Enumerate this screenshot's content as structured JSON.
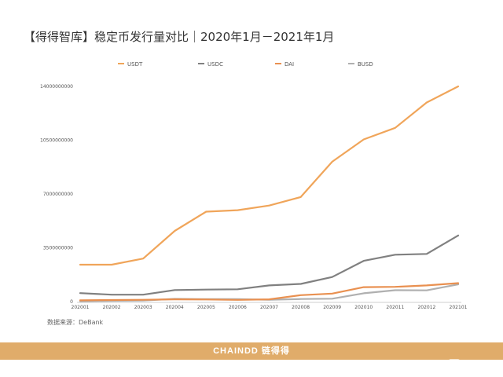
{
  "title": "【得得智库】稳定币发行量对比｜2020年1月－2021年1月",
  "source": "数据来源：DeBank",
  "footer": {
    "brand": "CHAINDD 链得得"
  },
  "watermark": {
    "text": "链得得",
    "subtext": "CHAINDD"
  },
  "chart_data": {
    "type": "line",
    "categories": [
      "202001",
      "202002",
      "202003",
      "202004",
      "202005",
      "202006",
      "202007",
      "202008",
      "202009",
      "202010",
      "202011",
      "202012",
      "202101"
    ],
    "yticks": [
      "0",
      "3500000000",
      "7000000000",
      "10500000000",
      "14000000000"
    ],
    "ylim": [
      0,
      14000000000
    ],
    "legend_position": "top",
    "grid": false,
    "series": [
      {
        "name": "USDT",
        "color": "#f0a55a",
        "values": [
          2400000000,
          2400000000,
          2800000000,
          4600000000,
          5850000000,
          5950000000,
          6250000000,
          6800000000,
          9100000000,
          10550000000,
          11300000000,
          12950000000,
          14000000000
        ]
      },
      {
        "name": "USDC",
        "color": "#808080",
        "values": [
          550000000,
          450000000,
          450000000,
          750000000,
          780000000,
          800000000,
          1050000000,
          1150000000,
          1600000000,
          2650000000,
          3050000000,
          3100000000,
          4300000000
        ]
      },
      {
        "name": "DAI",
        "color": "#e99050",
        "values": [
          80000000,
          100000000,
          120000000,
          150000000,
          140000000,
          110000000,
          150000000,
          420000000,
          520000000,
          940000000,
          960000000,
          1050000000,
          1200000000
        ]
      },
      {
        "name": "BUSD",
        "color": "#b0b0b0",
        "values": [
          20000000,
          50000000,
          70000000,
          180000000,
          160000000,
          160000000,
          120000000,
          170000000,
          190000000,
          540000000,
          740000000,
          730000000,
          1120000000
        ]
      }
    ]
  }
}
